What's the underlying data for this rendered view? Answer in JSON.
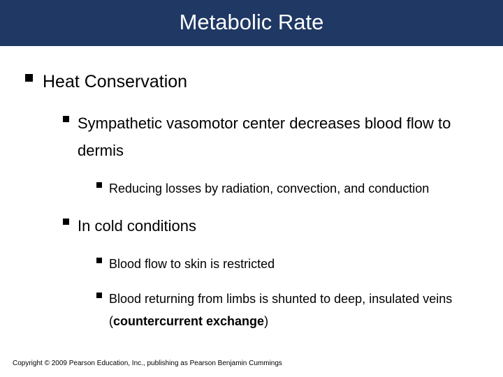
{
  "slide": {
    "title": "Metabolic Rate",
    "title_bar_color": "#1f3864",
    "title_text_color": "#ffffff",
    "title_fontsize": 31,
    "background_color": "#ffffff",
    "body_text_color": "#000000",
    "bullets": {
      "lvl1": {
        "text": "Heat Conservation",
        "fontsize": 25,
        "bullet_size": 11
      },
      "lvl2a": {
        "text": "Sympathetic vasomotor center decreases blood flow to dermis",
        "fontsize": 22,
        "bullet_size": 9
      },
      "lvl3a": {
        "text": "Reducing losses by radiation, convection, and conduction",
        "fontsize": 18,
        "bullet_size": 8
      },
      "lvl2b": {
        "text": "In cold conditions",
        "fontsize": 22,
        "bullet_size": 9
      },
      "lvl3b": {
        "text": "Blood flow to skin is restricted",
        "fontsize": 18,
        "bullet_size": 8
      },
      "lvl3c_pre": "Blood returning from limbs is shunted to deep, insulated veins (",
      "lvl3c_bold": "countercurrent exchange",
      "lvl3c_post": ")",
      "lvl3c": {
        "fontsize": 18,
        "bullet_size": 8
      }
    },
    "footer": "Copyright © 2009 Pearson Education, Inc., publishing as Pearson Benjamin Cummings",
    "footer_fontsize": 10
  }
}
